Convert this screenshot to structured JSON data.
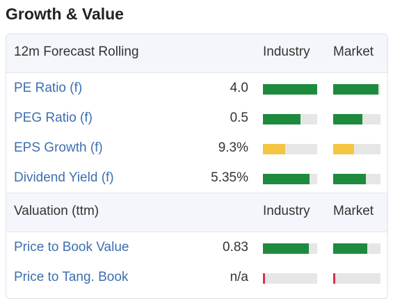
{
  "page_title": "Growth & Value",
  "colors": {
    "green": "#1e8a3e",
    "yellow": "#f4c542",
    "red": "#d9314a",
    "track": "#e6e6e6",
    "link": "#3d6fb0"
  },
  "section_forecast": {
    "label": "12m Forecast Rolling",
    "col_industry": "Industry",
    "col_market": "Market",
    "rows": [
      {
        "metric": "PE Ratio (f)",
        "value": "4.0",
        "industry": {
          "level": 1.0,
          "color": "green"
        },
        "market": {
          "level": 0.96,
          "color": "green"
        }
      },
      {
        "metric": "PEG Ratio (f)",
        "value": "0.5",
        "industry": {
          "level": 0.69,
          "color": "green"
        },
        "market": {
          "level": 0.62,
          "color": "green"
        }
      },
      {
        "metric": "EPS Growth (f)",
        "value": "9.3%",
        "industry": {
          "level": 0.41,
          "color": "yellow"
        },
        "market": {
          "level": 0.44,
          "color": "yellow"
        }
      },
      {
        "metric": "Dividend Yield (f)",
        "value": "5.35%",
        "industry": {
          "level": 0.86,
          "color": "green"
        },
        "market": {
          "level": 0.69,
          "color": "green"
        }
      }
    ]
  },
  "section_valuation": {
    "label": "Valuation (ttm)",
    "col_industry": "Industry",
    "col_market": "Market",
    "rows": [
      {
        "metric": "Price to Book Value",
        "value": "0.83",
        "industry": {
          "level": 0.85,
          "color": "green"
        },
        "market": {
          "level": 0.72,
          "color": "green"
        }
      },
      {
        "metric": "Price to Tang. Book",
        "value": "n/a",
        "industry": {
          "level": 0.04,
          "color": "red"
        },
        "market": {
          "level": 0.04,
          "color": "red"
        }
      }
    ]
  }
}
